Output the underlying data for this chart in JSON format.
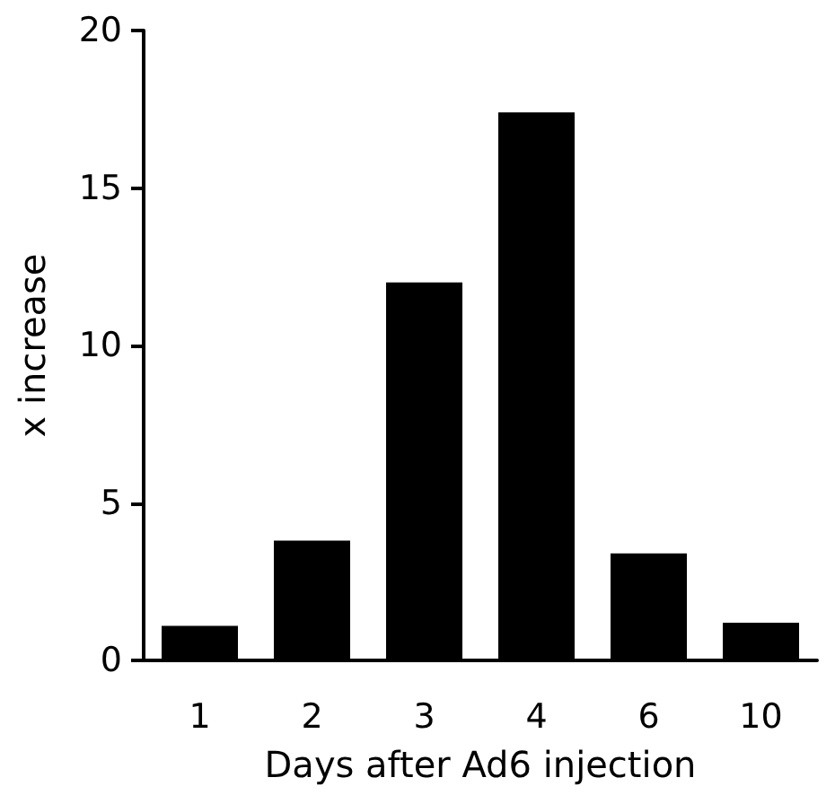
{
  "chart_data": {
    "type": "bar",
    "xlabel": "Days after Ad6 injection",
    "ylabel": "x increase",
    "categories": [
      "1",
      "2",
      "3",
      "4",
      "6",
      "10"
    ],
    "values": [
      1.1,
      3.8,
      12.0,
      17.4,
      3.4,
      1.2
    ],
    "color": "#000000",
    "ylim": [
      0,
      20
    ],
    "yticks": [
      0,
      5,
      10,
      15,
      20
    ],
    "grid": false
  }
}
